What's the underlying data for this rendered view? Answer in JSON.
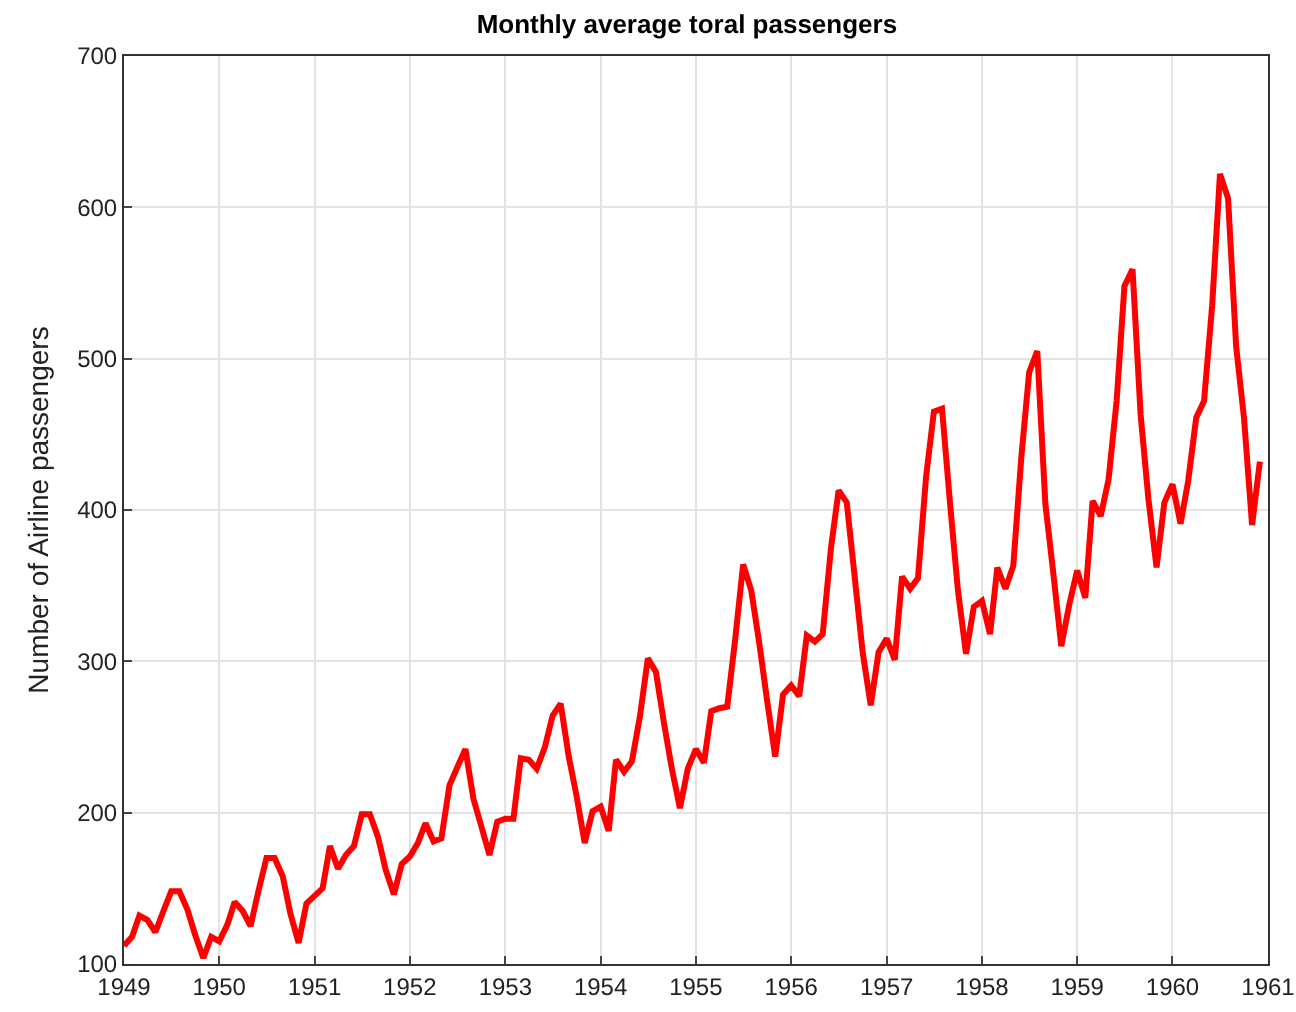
{
  "chart_data": {
    "type": "line",
    "title": "Monthly average toral passengers",
    "ylabel": "Number of Airline passengers",
    "x": [
      "1949-01",
      "1949-02",
      "1949-03",
      "1949-04",
      "1949-05",
      "1949-06",
      "1949-07",
      "1949-08",
      "1949-09",
      "1949-10",
      "1949-11",
      "1949-12",
      "1950-01",
      "1950-02",
      "1950-03",
      "1950-04",
      "1950-05",
      "1950-06",
      "1950-07",
      "1950-08",
      "1950-09",
      "1950-10",
      "1950-11",
      "1950-12",
      "1951-01",
      "1951-02",
      "1951-03",
      "1951-04",
      "1951-05",
      "1951-06",
      "1951-07",
      "1951-08",
      "1951-09",
      "1951-10",
      "1951-11",
      "1951-12",
      "1952-01",
      "1952-02",
      "1952-03",
      "1952-04",
      "1952-05",
      "1952-06",
      "1952-07",
      "1952-08",
      "1952-09",
      "1952-10",
      "1952-11",
      "1952-12",
      "1953-01",
      "1953-02",
      "1953-03",
      "1953-04",
      "1953-05",
      "1953-06",
      "1953-07",
      "1953-08",
      "1953-09",
      "1953-10",
      "1953-11",
      "1953-12",
      "1954-01",
      "1954-02",
      "1954-03",
      "1954-04",
      "1954-05",
      "1954-06",
      "1954-07",
      "1954-08",
      "1954-09",
      "1954-10",
      "1954-11",
      "1954-12",
      "1955-01",
      "1955-02",
      "1955-03",
      "1955-04",
      "1955-05",
      "1955-06",
      "1955-07",
      "1955-08",
      "1955-09",
      "1955-10",
      "1955-11",
      "1955-12",
      "1956-01",
      "1956-02",
      "1956-03",
      "1956-04",
      "1956-05",
      "1956-06",
      "1956-07",
      "1956-08",
      "1956-09",
      "1956-10",
      "1956-11",
      "1956-12",
      "1957-01",
      "1957-02",
      "1957-03",
      "1957-04",
      "1957-05",
      "1957-06",
      "1957-07",
      "1957-08",
      "1957-09",
      "1957-10",
      "1957-11",
      "1957-12",
      "1958-01",
      "1958-02",
      "1958-03",
      "1958-04",
      "1958-05",
      "1958-06",
      "1958-07",
      "1958-08",
      "1958-09",
      "1958-10",
      "1958-11",
      "1958-12",
      "1959-01",
      "1959-02",
      "1959-03",
      "1959-04",
      "1959-05",
      "1959-06",
      "1959-07",
      "1959-08",
      "1959-09",
      "1959-10",
      "1959-11",
      "1959-12",
      "1960-01",
      "1960-02",
      "1960-03",
      "1960-04",
      "1960-05",
      "1960-06",
      "1960-07",
      "1960-08",
      "1960-09",
      "1960-10",
      "1960-11",
      "1960-12"
    ],
    "series": [
      {
        "color": "#ff0000",
        "values": [
          112,
          118,
          132,
          129,
          121,
          135,
          148,
          148,
          136,
          119,
          104,
          118,
          115,
          126,
          141,
          135,
          125,
          149,
          170,
          170,
          158,
          133,
          114,
          140,
          145,
          150,
          178,
          163,
          172,
          178,
          199,
          199,
          184,
          162,
          146,
          166,
          171,
          180,
          193,
          181,
          183,
          218,
          230,
          242,
          209,
          191,
          172,
          194,
          196,
          196,
          236,
          235,
          229,
          243,
          264,
          272,
          237,
          211,
          180,
          201,
          204,
          188,
          235,
          227,
          234,
          264,
          302,
          293,
          259,
          229,
          203,
          229,
          242,
          233,
          267,
          269,
          270,
          315,
          364,
          347,
          312,
          274,
          237,
          278,
          284,
          277,
          317,
          313,
          318,
          374,
          413,
          405,
          355,
          306,
          271,
          306,
          315,
          301,
          356,
          348,
          355,
          422,
          465,
          467,
          404,
          347,
          305,
          336,
          340,
          318,
          362,
          348,
          363,
          435,
          491,
          505,
          404,
          359,
          310,
          337,
          360,
          342,
          406,
          396,
          420,
          472,
          548,
          559,
          463,
          407,
          362,
          405,
          417,
          391,
          419,
          461,
          472,
          535,
          622,
          606,
          508,
          461,
          390,
          432
        ]
      }
    ],
    "xlim": [
      "1949",
      "1961"
    ],
    "xticks": [
      "1949",
      "1950",
      "1951",
      "1952",
      "1953",
      "1954",
      "1955",
      "1956",
      "1957",
      "1958",
      "1959",
      "1960",
      "1961"
    ],
    "ylim": [
      100,
      700
    ],
    "yticks": [
      100,
      200,
      300,
      400,
      500,
      600,
      700
    ],
    "grid": true,
    "line_style": "solid",
    "marker": "none"
  }
}
